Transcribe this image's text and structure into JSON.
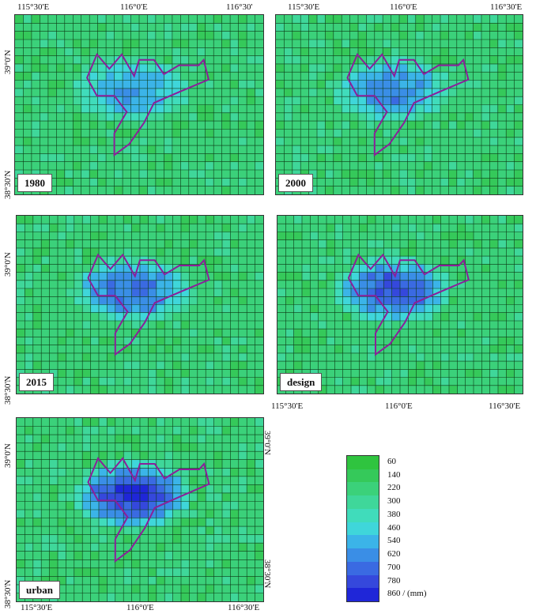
{
  "panels": [
    {
      "id": "p1980",
      "label": "1980"
    },
    {
      "id": "p2000",
      "label": "2000"
    },
    {
      "id": "p2015",
      "label": "2015"
    },
    {
      "id": "pdesign",
      "label": "design"
    },
    {
      "id": "purban",
      "label": "urban"
    }
  ],
  "axis_labels": {
    "lon_1": "115°30'E",
    "lon_2": "116°0'E",
    "lon_3": "116°30'",
    "lon_3_full": "116°30'E",
    "lat_1": "39°0'N",
    "lat_2": "38°30'N"
  },
  "legend": {
    "entries": [
      "60",
      "140",
      "220",
      "300",
      "380",
      "460",
      "540",
      "620",
      "700",
      "780",
      "860 / (mm)"
    ],
    "colors": [
      "#2fc43f",
      "#35c95a",
      "#3bd17a",
      "#3fd79a",
      "#40dcbb",
      "#3fd6da",
      "#3bb4e8",
      "#3a8ee6",
      "#3a6ae2",
      "#3548dc",
      "#1f26d8"
    ]
  },
  "colors": {
    "outline": "#8b1f9a",
    "grid": "#0d3a14"
  }
}
